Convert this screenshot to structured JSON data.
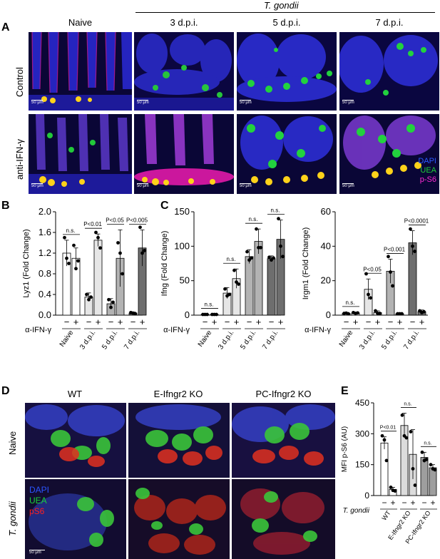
{
  "panelA": {
    "letter": "A",
    "group_label": "T. gondii",
    "columns": [
      "Naive",
      "3 d.p.i.",
      "5 d.p.i.",
      "7 d.p.i."
    ],
    "rows": [
      "Control",
      "anti-IFN-γ"
    ],
    "scale_label": "50 μm",
    "legend": [
      {
        "label": "DAPI",
        "color": "#2b5bff"
      },
      {
        "label": "UEA",
        "color": "#1fcf3a"
      },
      {
        "label": "p-S6",
        "color": "#ff2bd5"
      }
    ]
  },
  "panelB": {
    "letter": "B"
  },
  "panelC": {
    "letter": "C"
  },
  "panelD": {
    "letter": "D",
    "columns": [
      "WT",
      "E-Ifngr2 KO",
      "PC-Ifngr2 KO"
    ],
    "rows": [
      "Naive",
      "T. gondii"
    ],
    "legend": [
      {
        "label": "DAPI",
        "color": "#2b55ff"
      },
      {
        "label": "UEA",
        "color": "#19d23a"
      },
      {
        "label": "pS6",
        "color": "#ff2020"
      }
    ],
    "scale_label": "50 μm"
  },
  "panelE": {
    "letter": "E"
  },
  "chart_data": [
    {
      "id": "lyz1",
      "type": "bar",
      "ylabel": "Lyz1 (Fold Change)",
      "ylim": [
        0,
        2.0
      ],
      "yticks": [
        "0.0",
        "0.4",
        "0.8",
        "1.2",
        "1.6",
        "2.0"
      ],
      "treatment_label": "α-IFN-γ",
      "treatment_signs": [
        "−",
        "+"
      ],
      "categories": [
        "Naive",
        "3 d.p.i.",
        "5 d.p.i.",
        "7 d.p.i."
      ],
      "bar_colors": [
        "#ffffff",
        "#e6e6e6",
        "#b3b3b3",
        "#6e6e6e"
      ],
      "series": [
        {
          "name": "−",
          "values": [
            1.2,
            0.35,
            0.22,
            0.04
          ],
          "errors": [
            0.25,
            0.08,
            0.1,
            0.02
          ]
        },
        {
          "name": "+",
          "values": [
            1.1,
            1.45,
            1.1,
            1.3
          ],
          "errors": [
            0.2,
            0.12,
            0.55,
            0.35
          ]
        }
      ],
      "points": [
        [
          [
            1.5,
            1.1,
            1.0
          ],
          [
            1.35,
            0.9,
            1.05
          ]
        ],
        [
          [
            0.4,
            0.3,
            0.35
          ],
          [
            1.6,
            1.5,
            1.3
          ]
        ],
        [
          [
            0.3,
            0.15,
            0.25
          ],
          [
            1.4,
            1.2,
            0.8
          ]
        ],
        [
          [
            0.05,
            0.04,
            0.03
          ],
          [
            1.7,
            1.2,
            1.25
          ]
        ]
      ],
      "significance": [
        "n.s.",
        "P<0.01",
        "P<0.05",
        "P<0.005"
      ]
    },
    {
      "id": "ifng",
      "type": "bar",
      "ylabel": "Ifng (Fold Change)",
      "ylim": [
        0,
        150
      ],
      "yticks": [
        "0",
        "50",
        "100",
        "150"
      ],
      "treatment_label": "α-IFN-γ",
      "treatment_signs": [
        "−",
        "+"
      ],
      "categories": [
        "Naive",
        "3 d.p.i.",
        "5 d.p.i.",
        "7 d.p.i."
      ],
      "bar_colors": [
        "#ffffff",
        "#e6e6e6",
        "#b3b3b3",
        "#6e6e6e"
      ],
      "series": [
        {
          "name": "−",
          "values": [
            1,
            32,
            85,
            82
          ],
          "errors": [
            0.5,
            8,
            10,
            4
          ]
        },
        {
          "name": "+",
          "values": [
            1,
            53,
            107,
            110
          ],
          "errors": [
            0.5,
            14,
            18,
            28
          ]
        }
      ],
      "points": [
        [
          [
            1,
            1,
            1
          ],
          [
            1,
            1,
            1
          ]
        ],
        [
          [
            38,
            28,
            30
          ],
          [
            65,
            48,
            45
          ]
        ],
        [
          [
            92,
            80,
            83
          ],
          [
            125,
            98,
            98
          ]
        ],
        [
          [
            84,
            80,
            83
          ],
          [
            140,
            100,
            85
          ]
        ]
      ],
      "significance": [
        "n.s.",
        "n.s.",
        "n.s.",
        "n.s."
      ]
    },
    {
      "id": "irgm1",
      "type": "bar",
      "ylabel": "Irgm1 (Fold Change)",
      "ylim": [
        0,
        60
      ],
      "yticks": [
        "0",
        "20",
        "40",
        "60"
      ],
      "treatment_label": "α-IFN-γ",
      "treatment_signs": [
        "−",
        "+"
      ],
      "categories": [
        "Naive",
        "3 d.p.i.",
        "5 d.p.i.",
        "7 d.p.i."
      ],
      "bar_colors": [
        "#ffffff",
        "#e6e6e6",
        "#b3b3b3",
        "#6e6e6e"
      ],
      "series": [
        {
          "name": "−",
          "values": [
            1,
            15,
            25.5,
            42
          ],
          "errors": [
            0.5,
            6,
            7,
            7
          ]
        },
        {
          "name": "+",
          "values": [
            1.2,
            1.5,
            0.8,
            2
          ],
          "errors": [
            0.5,
            1,
            0.3,
            1
          ]
        }
      ],
      "points": [
        [
          [
            1,
            1.2,
            0.8
          ],
          [
            1.5,
            1.0,
            1.3
          ]
        ],
        [
          [
            24,
            12,
            10
          ],
          [
            2.5,
            1,
            1
          ]
        ],
        [
          [
            34,
            25,
            17
          ],
          [
            0.8,
            0.8,
            0.8
          ]
        ],
        [
          [
            50,
            40,
            37
          ],
          [
            2.5,
            1.5,
            2
          ]
        ]
      ],
      "significance": [
        "n.s.",
        "P<0.05",
        "P<0.001",
        "P<0.0001"
      ]
    },
    {
      "id": "mfi",
      "type": "bar",
      "ylabel": "MFI p-S6 (AU)",
      "ylim": [
        0,
        450
      ],
      "yticks": [
        "0",
        "150",
        "300",
        "450"
      ],
      "treatment_label": "T. gondii",
      "treatment_signs": [
        "−",
        "+"
      ],
      "categories": [
        "WT",
        "E-Ifngr2 KO",
        "PC-Ifngr2 KO"
      ],
      "bar_colors": [
        "#ffffff",
        "#dcdcdc",
        "#9e9e9e"
      ],
      "series": [
        {
          "name": "−",
          "values": [
            255,
            340,
            185
          ],
          "errors": [
            30,
            60,
            25
          ]
        },
        {
          "name": "+",
          "values": [
            30,
            200,
            135
          ],
          "errors": [
            10,
            120,
            15
          ]
        }
      ],
      "points": [
        [
          [
            290,
            270,
            170
          ],
          [
            40,
            25,
            22
          ]
        ],
        [
          [
            390,
            290,
            280
          ],
          [
            310,
            130,
            50
          ]
        ],
        [
          [
            210,
            170,
            175
          ],
          [
            150,
            130,
            125
          ]
        ]
      ],
      "significance": [
        "P<0.01",
        "n.s.",
        "n.s."
      ]
    }
  ]
}
